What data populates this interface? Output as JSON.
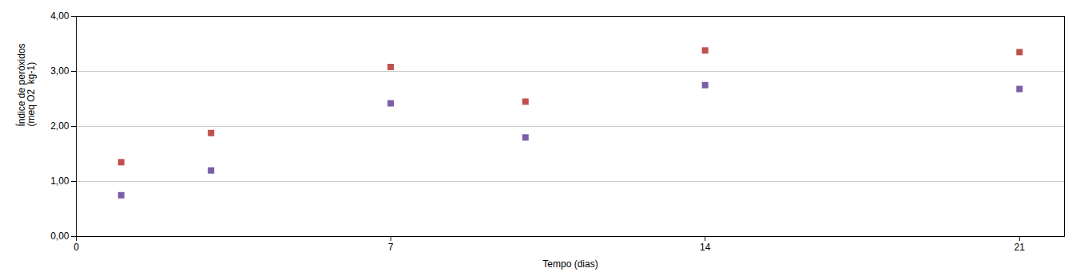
{
  "chart_data": {
    "type": "scatter",
    "xlabel": "Tempo (dias)",
    "ylabel": "Índice de peróxidos\n(meq O2  kg-1)",
    "x": [
      1,
      3,
      7,
      10,
      14,
      21
    ],
    "series": [
      {
        "color": "#C0504D",
        "values": [
          1.35,
          1.88,
          3.08,
          2.45,
          3.38,
          3.35
        ]
      },
      {
        "color": "#7B5EA7",
        "values": [
          0.75,
          1.2,
          2.42,
          1.8,
          2.75,
          2.68
        ]
      }
    ],
    "marker": "square",
    "xlim": [
      0,
      22
    ],
    "ylim": [
      0.0,
      4.0
    ],
    "xticks": [
      0,
      7,
      14,
      21
    ],
    "yticks": [
      {
        "value": 0.0,
        "label": "0,00"
      },
      {
        "value": 1.0,
        "label": "1,00"
      },
      {
        "value": 2.0,
        "label": "2,00"
      },
      {
        "value": 3.0,
        "label": "3,00"
      },
      {
        "value": 4.0,
        "label": "4,00"
      }
    ],
    "grid": "y"
  }
}
